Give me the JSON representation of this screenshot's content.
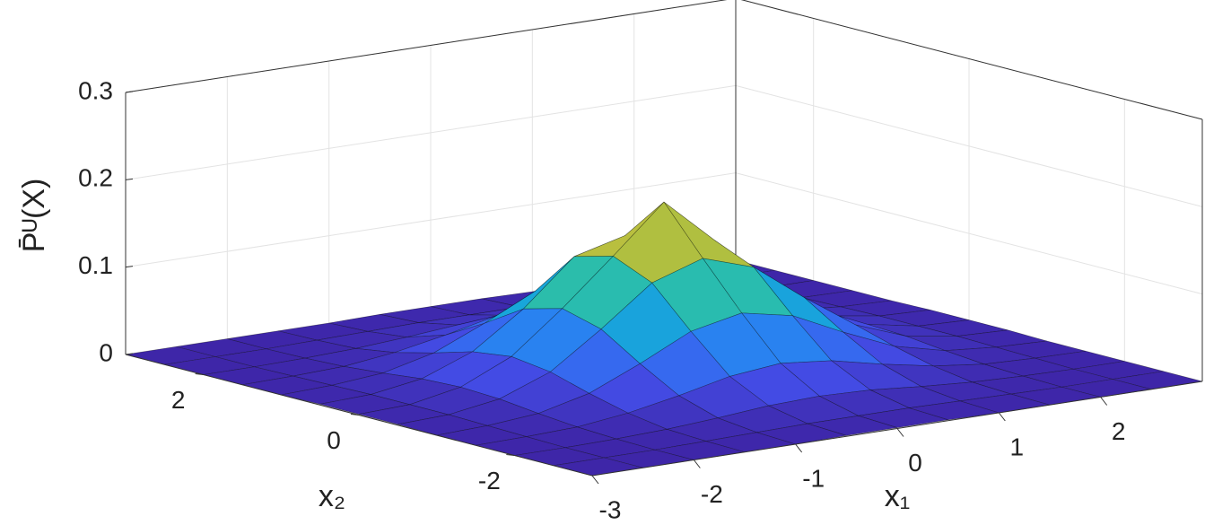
{
  "chart_data": {
    "type": "surface",
    "x1label": "x₁",
    "x2label": "x₂",
    "zlabel": "P̄ᵁ(X)",
    "x1": [
      -3,
      -2.5,
      -2,
      -1.5,
      -1,
      -0.5,
      0,
      0.5,
      1,
      1.5,
      2,
      2.5,
      3
    ],
    "x2": [
      -3,
      -2.5,
      -2,
      -1.5,
      -1,
      -0.5,
      0,
      0.5,
      1,
      1.5,
      2,
      2.5,
      3
    ],
    "z": [
      [
        0,
        0,
        0,
        0,
        0,
        0.001,
        0.001,
        0.001,
        0,
        0,
        0,
        0,
        0
      ],
      [
        0,
        0,
        0,
        0.001,
        0.002,
        0.003,
        0.003,
        0.003,
        0.002,
        0.001,
        0,
        0,
        0
      ],
      [
        0,
        0,
        0.001,
        0.003,
        0.007,
        0.012,
        0.014,
        0.012,
        0.007,
        0.003,
        0.001,
        0,
        0
      ],
      [
        0,
        0.001,
        0.003,
        0.01,
        0.021,
        0.034,
        0.04,
        0.034,
        0.021,
        0.01,
        0.003,
        0.001,
        0
      ],
      [
        0,
        0.002,
        0.007,
        0.021,
        0.046,
        0.074,
        0.086,
        0.074,
        0.046,
        0.021,
        0.007,
        0.002,
        0
      ],
      [
        0.001,
        0.003,
        0.012,
        0.034,
        0.074,
        0.118,
        0.137,
        0.118,
        0.074,
        0.034,
        0.012,
        0.003,
        0.001
      ],
      [
        0.001,
        0.003,
        0.014,
        0.04,
        0.086,
        0.137,
        0.19,
        0.137,
        0.086,
        0.04,
        0.014,
        0.003,
        0.001
      ],
      [
        0.001,
        0.003,
        0.012,
        0.034,
        0.074,
        0.125,
        0.14,
        0.128,
        0.074,
        0.034,
        0.012,
        0.003,
        0.001
      ],
      [
        0,
        0.002,
        0.007,
        0.021,
        0.046,
        0.074,
        0.09,
        0.074,
        0.046,
        0.021,
        0.007,
        0.002,
        0
      ],
      [
        0,
        0.001,
        0.003,
        0.01,
        0.021,
        0.034,
        0.04,
        0.034,
        0.021,
        0.01,
        0.003,
        0.001,
        0
      ],
      [
        0,
        0,
        0.001,
        0.003,
        0.007,
        0.012,
        0.014,
        0.012,
        0.007,
        0.003,
        0.001,
        0,
        0
      ],
      [
        0,
        0,
        0,
        0.001,
        0.002,
        0.003,
        0.003,
        0.003,
        0.002,
        0.001,
        0,
        0,
        0
      ],
      [
        0,
        0,
        0,
        0,
        0,
        0.001,
        0.001,
        0.001,
        0,
        0,
        0,
        0,
        0
      ]
    ],
    "x1lim": [
      -3,
      3
    ],
    "x2lim": [
      -3,
      3
    ],
    "zlim": [
      0,
      0.3
    ],
    "x1ticks": [
      -3,
      -2,
      -1,
      0,
      1,
      2
    ],
    "x2ticks": [
      -2,
      0,
      2
    ],
    "zticks": [
      0,
      0.1,
      0.2,
      0.3
    ],
    "grid": true
  }
}
